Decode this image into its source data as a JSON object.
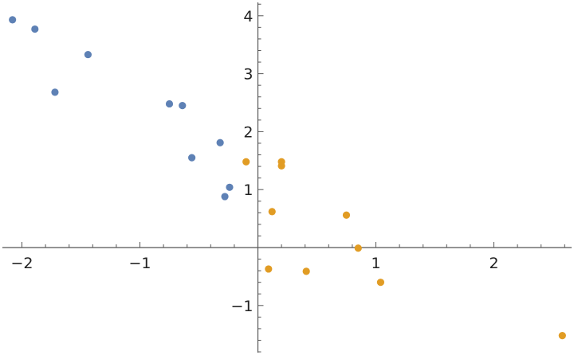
{
  "chart_data": {
    "type": "scatter",
    "title": "",
    "xlabel": "",
    "ylabel": "",
    "xlim": [
      -2.19,
      2.67
    ],
    "ylim": [
      -1.8,
      4.2
    ],
    "grid": false,
    "x_ticks": [
      -2,
      -1,
      1,
      2
    ],
    "y_ticks": [
      -1,
      1,
      2,
      3,
      4
    ],
    "x_tick_labels": [
      "−2",
      "−1",
      "1",
      "2"
    ],
    "y_tick_labels": [
      "−1",
      "1",
      "2",
      "3",
      "4"
    ],
    "series": [
      {
        "color": "#5e81b5",
        "points": [
          [
            -2.08,
            3.93
          ],
          [
            -1.89,
            3.77
          ],
          [
            -1.44,
            3.33
          ],
          [
            -1.72,
            2.68
          ],
          [
            -0.75,
            2.48
          ],
          [
            -0.64,
            2.45
          ],
          [
            -0.32,
            1.81
          ],
          [
            -0.56,
            1.55
          ],
          [
            -0.24,
            1.04
          ],
          [
            -0.28,
            0.88
          ]
        ]
      },
      {
        "color": "#e19c24",
        "points": [
          [
            -0.1,
            1.48
          ],
          [
            0.2,
            1.48
          ],
          [
            0.2,
            1.41
          ],
          [
            0.12,
            0.62
          ],
          [
            0.75,
            0.56
          ],
          [
            0.85,
            -0.01
          ],
          [
            0.09,
            -0.37
          ],
          [
            0.41,
            -0.41
          ],
          [
            1.04,
            -0.6
          ],
          [
            2.58,
            -1.52
          ]
        ]
      }
    ]
  }
}
